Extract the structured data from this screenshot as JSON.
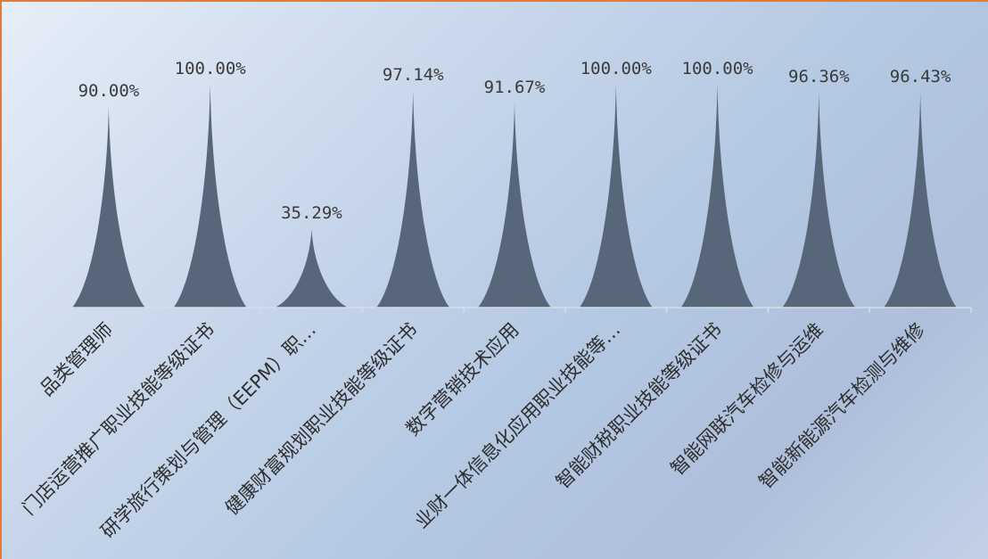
{
  "chart_data": {
    "type": "bar",
    "bar_shape": "spike",
    "categories": [
      "品类管理师",
      "门店运营推广职业技能等级证书",
      "研学旅行策划与管理（EEPM）职…",
      "健康财富规划职业技能等级证书",
      "数字营销技术应用",
      "业财一体信息化应用职业技能等…",
      "智能财税职业技能等级证书",
      "智能网联汽车检修与运维",
      "智能新能源汽车检测与维修"
    ],
    "series": [
      {
        "values": [
          90.0,
          100.0,
          35.29,
          97.14,
          91.67,
          100.0,
          100.0,
          96.36,
          96.43
        ],
        "labels": [
          "90.00%",
          "100.00%",
          "35.29%",
          "97.14%",
          "91.67%",
          "100.00%",
          "100.00%",
          "96.36%",
          "96.43%"
        ]
      }
    ],
    "ylim": [
      0,
      100
    ],
    "grid": false,
    "legend": "none",
    "title": "",
    "xlabel": "",
    "ylabel": "",
    "colors": {
      "bar": "#58667a",
      "axis": "#d8dde6"
    }
  }
}
